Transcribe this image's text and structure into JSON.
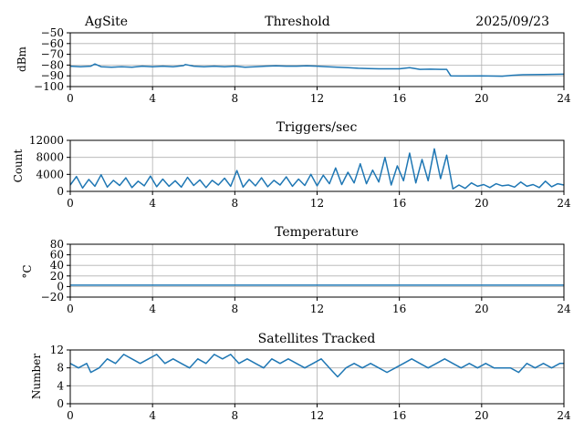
{
  "chart_data": [
    {
      "type": "line",
      "title": "Threshold",
      "header_left": "AgSite",
      "header_right": "2025/09/23",
      "xlabel": "",
      "ylabel": "dBm",
      "xlim": [
        0,
        24
      ],
      "ylim": [
        -100,
        -50
      ],
      "xticks": [
        0,
        4,
        8,
        12,
        16,
        20,
        24
      ],
      "yticks": [
        -100,
        -90,
        -80,
        -70,
        -60,
        -50
      ],
      "ytick_labels": [
        "−100",
        "−90",
        "−80",
        "−70",
        "−60",
        "−50"
      ],
      "grid": true,
      "color": "#1f77b4",
      "series": [
        {
          "name": "threshold",
          "x": [
            0,
            0.5,
            1.0,
            1.2,
            1.5,
            2.0,
            2.5,
            3.0,
            3.5,
            4.0,
            4.5,
            5.0,
            5.5,
            5.6,
            6.0,
            6.5,
            7.0,
            7.5,
            8.0,
            8.5,
            9.0,
            9.5,
            10.0,
            10.5,
            11.0,
            11.5,
            12.0,
            12.5,
            13.0,
            13.5,
            14.0,
            14.5,
            15.0,
            15.5,
            16.0,
            16.5,
            17.0,
            17.5,
            18.0,
            18.3,
            18.5,
            19.0,
            20.0,
            21.0,
            21.5,
            22.0,
            23.0,
            24.0
          ],
          "y": [
            -81,
            -81.5,
            -81,
            -79,
            -81.5,
            -82,
            -81.5,
            -82,
            -81,
            -81.5,
            -81,
            -81.5,
            -80.5,
            -79.5,
            -81,
            -81.5,
            -81,
            -81.5,
            -81,
            -82,
            -81.5,
            -81,
            -80.8,
            -81,
            -81,
            -80.7,
            -81,
            -81.5,
            -82,
            -82.5,
            -83,
            -83.2,
            -83.5,
            -83.5,
            -83.5,
            -82.5,
            -84,
            -83.8,
            -84,
            -84,
            -90,
            -90.2,
            -90,
            -90.3,
            -89.5,
            -89,
            -88.8,
            -88.5
          ]
        }
      ]
    },
    {
      "type": "line",
      "title": "Triggers/sec",
      "xlabel": "",
      "ylabel": "Count",
      "xlim": [
        0,
        24
      ],
      "ylim": [
        0,
        12000
      ],
      "xticks": [
        0,
        4,
        8,
        12,
        16,
        20,
        24
      ],
      "yticks": [
        0,
        4000,
        8000,
        12000
      ],
      "ytick_labels": [
        "0",
        "4000",
        "8000",
        "12000"
      ],
      "grid": true,
      "color": "#1f77b4",
      "series": [
        {
          "name": "triggers",
          "x": [
            0,
            0.3,
            0.6,
            0.9,
            1.2,
            1.5,
            1.8,
            2.1,
            2.4,
            2.7,
            3.0,
            3.3,
            3.6,
            3.9,
            4.2,
            4.5,
            4.8,
            5.1,
            5.4,
            5.7,
            6.0,
            6.3,
            6.6,
            6.9,
            7.2,
            7.5,
            7.8,
            8.1,
            8.4,
            8.7,
            9.0,
            9.3,
            9.6,
            9.9,
            10.2,
            10.5,
            10.8,
            11.1,
            11.4,
            11.7,
            12.0,
            12.3,
            12.6,
            12.9,
            13.2,
            13.5,
            13.8,
            14.1,
            14.4,
            14.7,
            15.0,
            15.3,
            15.6,
            15.9,
            16.2,
            16.5,
            16.8,
            17.1,
            17.4,
            17.7,
            18.0,
            18.3,
            18.6,
            18.9,
            19.2,
            19.5,
            19.8,
            20.1,
            20.4,
            20.7,
            21.0,
            21.3,
            21.6,
            21.9,
            22.2,
            22.5,
            22.8,
            23.1,
            23.4,
            23.7,
            24.0
          ],
          "y": [
            1500,
            3500,
            800,
            2800,
            1200,
            3900,
            1000,
            2600,
            1400,
            3200,
            900,
            2400,
            1300,
            3600,
            1100,
            2900,
            1200,
            2500,
            1000,
            3300,
            1400,
            2700,
            900,
            2600,
            1500,
            3100,
            1200,
            4900,
            1000,
            2800,
            1300,
            3200,
            1100,
            2600,
            1500,
            3400,
            1200,
            2900,
            1400,
            4000,
            1300,
            3800,
            1800,
            5500,
            1600,
            4500,
            2000,
            6500,
            1800,
            5000,
            2200,
            8000,
            1500,
            6000,
            2500,
            9000,
            2000,
            7500,
            2500,
            10000,
            3000,
            8500,
            600,
            1500,
            700,
            2000,
            1200,
            1600,
            900,
            1800,
            1300,
            1500,
            1000,
            2200,
            1200,
            1600,
            900,
            2400,
            1100,
            1800,
            1500
          ]
        }
      ]
    },
    {
      "type": "line",
      "title": "Temperature",
      "xlabel": "",
      "ylabel": "°C",
      "xlim": [
        0,
        24
      ],
      "ylim": [
        -20,
        80
      ],
      "xticks": [
        0,
        4,
        8,
        12,
        16,
        20,
        24
      ],
      "yticks": [
        -20,
        0,
        20,
        40,
        60,
        80
      ],
      "ytick_labels": [
        "−20",
        "0",
        "20",
        "40",
        "60",
        "80"
      ],
      "grid": true,
      "color": "#1f77b4",
      "series": [
        {
          "name": "temperature",
          "x": [
            0,
            24
          ],
          "y": [
            2.5,
            2.5
          ]
        }
      ]
    },
    {
      "type": "line",
      "title": "Satellites Tracked",
      "xlabel": "",
      "ylabel": "Number",
      "xlim": [
        0,
        24
      ],
      "ylim": [
        0,
        12
      ],
      "xticks": [
        0,
        4,
        8,
        12,
        16,
        20,
        24
      ],
      "yticks": [
        0,
        4,
        8,
        12
      ],
      "ytick_labels": [
        "0",
        "4",
        "8",
        "12"
      ],
      "grid": true,
      "color": "#1f77b4",
      "series": [
        {
          "name": "satellites",
          "x": [
            0,
            0.4,
            0.8,
            1.0,
            1.4,
            1.8,
            2.2,
            2.6,
            3.0,
            3.4,
            3.8,
            4.2,
            4.6,
            5.0,
            5.4,
            5.8,
            6.2,
            6.6,
            7.0,
            7.4,
            7.8,
            8.2,
            8.6,
            9.0,
            9.4,
            9.8,
            10.2,
            10.6,
            11.0,
            11.4,
            11.8,
            12.2,
            12.6,
            13.0,
            13.4,
            13.8,
            14.2,
            14.6,
            15.0,
            15.4,
            15.8,
            16.2,
            16.6,
            17.0,
            17.4,
            17.8,
            18.2,
            18.6,
            19.0,
            19.4,
            19.8,
            20.2,
            20.6,
            21.0,
            21.4,
            21.8,
            22.2,
            22.6,
            23.0,
            23.4,
            23.8,
            24.0
          ],
          "y": [
            9,
            8,
            9,
            7,
            8,
            10,
            9,
            11,
            10,
            9,
            10,
            11,
            9,
            10,
            9,
            8,
            10,
            9,
            11,
            10,
            11,
            9,
            10,
            9,
            8,
            10,
            9,
            10,
            9,
            8,
            9,
            10,
            8,
            6,
            8,
            9,
            8,
            9,
            8,
            7,
            8,
            9,
            10,
            9,
            8,
            9,
            10,
            9,
            8,
            9,
            8,
            9,
            8,
            8,
            8,
            7,
            9,
            8,
            9,
            8,
            9,
            9
          ]
        }
      ]
    }
  ]
}
